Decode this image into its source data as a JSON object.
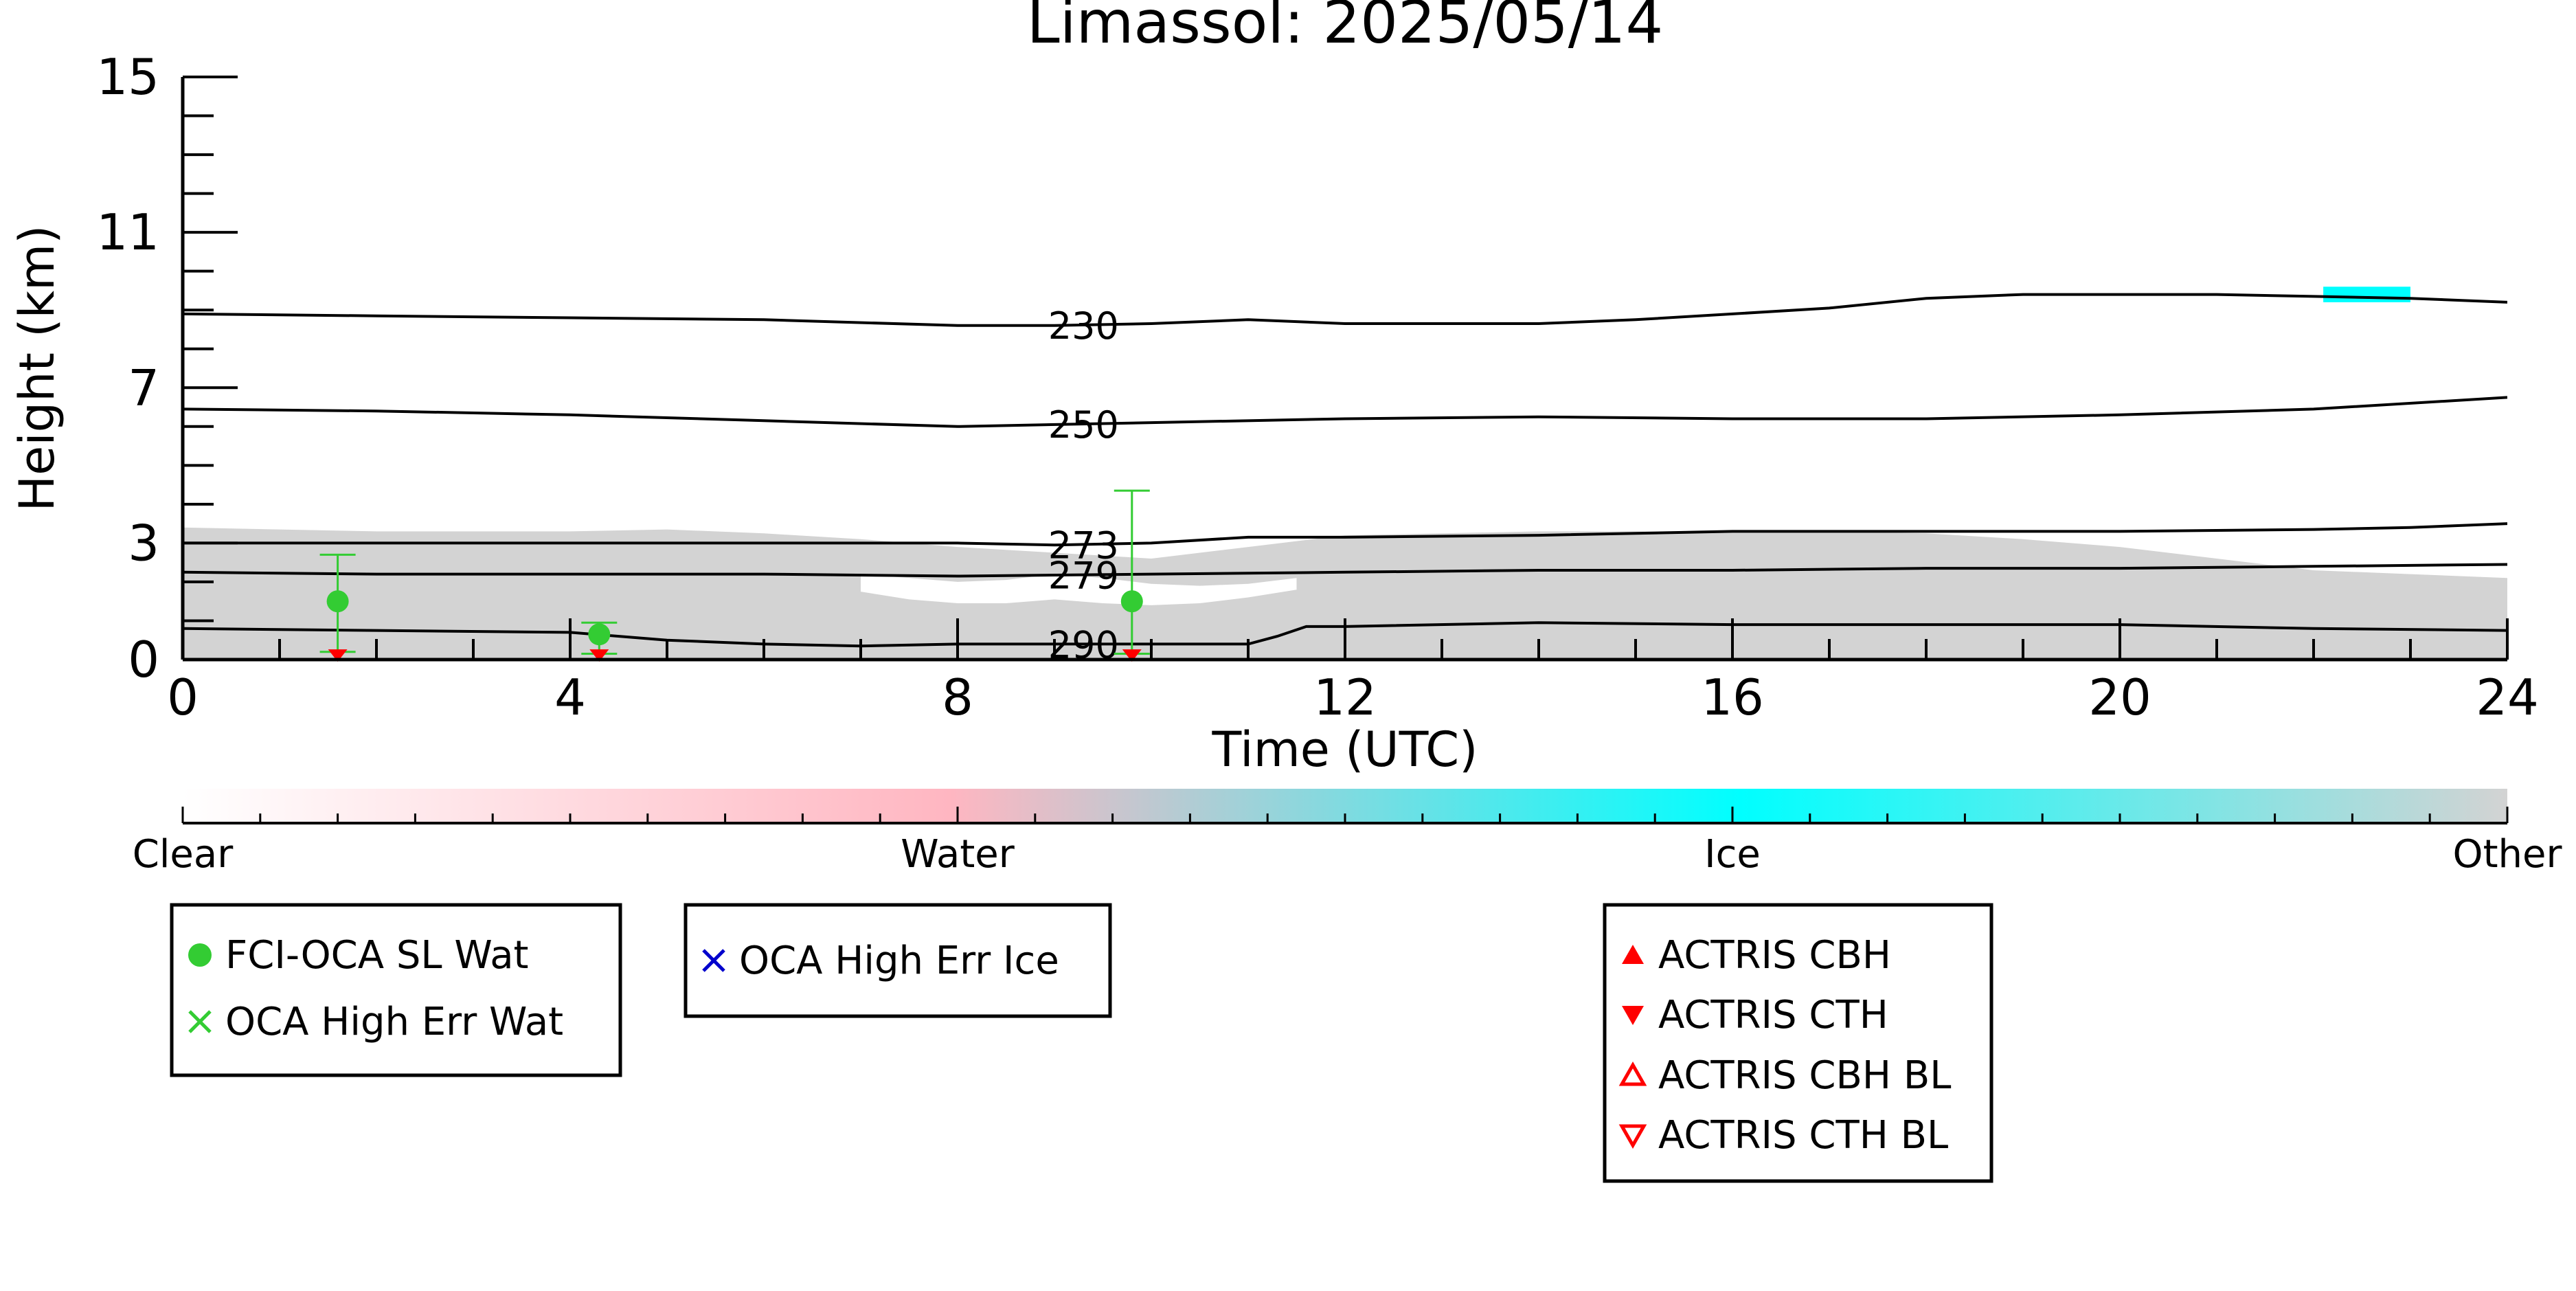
{
  "chart_data": {
    "type": "time-height cross-section with contours and markers",
    "title": "Limassol: 2025/05/14",
    "xlabel": "Time (UTC)",
    "ylabel": "Height (km)",
    "xlim": [
      0,
      24
    ],
    "ylim": [
      0,
      15
    ],
    "x_ticks": [
      0,
      4,
      8,
      12,
      16,
      20,
      24
    ],
    "y_ticks": [
      0,
      3,
      7,
      11,
      15
    ],
    "grid": false,
    "cloud_field": {
      "color": "#d3d3d3",
      "class": "Other",
      "boundary": {
        "x": [
          0,
          1,
          2,
          3,
          4,
          5,
          6,
          7,
          8,
          9,
          10,
          11,
          12,
          13,
          14,
          15,
          16,
          17,
          18,
          19,
          20,
          21,
          22,
          23,
          24
        ],
        "top_km": [
          3.4,
          3.35,
          3.3,
          3.3,
          3.3,
          3.35,
          3.25,
          3.1,
          2.9,
          2.75,
          2.6,
          2.9,
          3.2,
          3.25,
          3.3,
          3.3,
          3.3,
          3.3,
          3.25,
          3.1,
          2.9,
          2.6,
          2.3,
          2.2,
          2.1
        ]
      },
      "gap": {
        "x": [
          7.0,
          7.5,
          8.0,
          8.5,
          9.0,
          9.5,
          10.0,
          10.5,
          11.0,
          11.5
        ],
        "top_km": [
          2.2,
          2.1,
          2.0,
          2.05,
          2.2,
          2.1,
          1.95,
          1.9,
          1.95,
          2.1
        ],
        "bottom_km": [
          1.75,
          1.55,
          1.45,
          1.45,
          1.55,
          1.45,
          1.4,
          1.45,
          1.6,
          1.8
        ]
      }
    },
    "ice_patch": {
      "x_range": [
        22.1,
        23.0
      ],
      "height_km": [
        9.2,
        9.6
      ],
      "color": "#00ffff",
      "class": "Ice"
    },
    "temperature_contours": [
      {
        "label": "230",
        "label_x": 9.3,
        "x": [
          0,
          2,
          4,
          6,
          8,
          9,
          10,
          11,
          12,
          13,
          14,
          15,
          16,
          17,
          18,
          19,
          20,
          21,
          22,
          23,
          24
        ],
        "y": [
          8.9,
          8.85,
          8.8,
          8.75,
          8.6,
          8.6,
          8.65,
          8.75,
          8.65,
          8.65,
          8.65,
          8.75,
          8.9,
          9.05,
          9.3,
          9.4,
          9.4,
          9.4,
          9.35,
          9.3,
          9.2
        ]
      },
      {
        "label": "250",
        "label_x": 9.3,
        "x": [
          0,
          2,
          4,
          6,
          8,
          10,
          12,
          14,
          16,
          18,
          20,
          22,
          24
        ],
        "y": [
          6.45,
          6.4,
          6.3,
          6.15,
          6.0,
          6.1,
          6.2,
          6.25,
          6.2,
          6.2,
          6.3,
          6.45,
          6.75
        ]
      },
      {
        "label": "273",
        "label_x": 9.3,
        "x": [
          0,
          2,
          4,
          6,
          8,
          9,
          10,
          11,
          12,
          14,
          16,
          18,
          20,
          22,
          23,
          24
        ],
        "y": [
          3.0,
          3.0,
          3.0,
          3.0,
          3.0,
          2.95,
          3.0,
          3.15,
          3.15,
          3.2,
          3.3,
          3.3,
          3.3,
          3.35,
          3.4,
          3.5
        ]
      },
      {
        "label": "279",
        "label_x": 9.3,
        "x": [
          0,
          2,
          4,
          6,
          8,
          10,
          12,
          14,
          16,
          18,
          20,
          22,
          24
        ],
        "y": [
          2.25,
          2.2,
          2.2,
          2.2,
          2.15,
          2.2,
          2.25,
          2.3,
          2.3,
          2.35,
          2.35,
          2.4,
          2.45
        ]
      },
      {
        "label": "290",
        "label_x": 9.3,
        "x": [
          0,
          2,
          4,
          5,
          6,
          7,
          8,
          9,
          10,
          11,
          11.3,
          11.6,
          12,
          14,
          16,
          18,
          20,
          22,
          24
        ],
        "y": [
          0.8,
          0.75,
          0.7,
          0.5,
          0.4,
          0.35,
          0.4,
          0.4,
          0.4,
          0.4,
          0.6,
          0.85,
          0.85,
          0.95,
          0.9,
          0.9,
          0.9,
          0.8,
          0.75
        ]
      }
    ],
    "fci_oca_sl_wat": {
      "name": "FCI-OCA SL Wat",
      "color": "#33cc33",
      "points": [
        {
          "x": 1.6,
          "y": 1.5,
          "err_low": 0.2,
          "err_high": 2.7
        },
        {
          "x": 4.3,
          "y": 0.65,
          "err_low": 0.15,
          "err_high": 0.95
        },
        {
          "x": 9.8,
          "y": 1.5,
          "err_low": 0.15,
          "err_high": 4.35
        }
      ]
    },
    "actris_cth": {
      "name": "ACTRIS CTH",
      "color": "#ff0000",
      "points": [
        {
          "x": 1.6,
          "y": 0.05
        },
        {
          "x": 4.3,
          "y": 0.05
        },
        {
          "x": 9.8,
          "y": 0.05
        }
      ]
    },
    "colorbar": {
      "labels": [
        "Clear",
        "Water",
        "Ice",
        "Other"
      ],
      "stops": [
        {
          "pos": 0.0,
          "color": "#ffffff"
        },
        {
          "pos": 0.33,
          "color": "#ffb6c1"
        },
        {
          "pos": 0.67,
          "color": "#00ffff"
        },
        {
          "pos": 1.0,
          "color": "#d3d3d3"
        }
      ]
    },
    "legends": [
      {
        "entries": [
          {
            "label": "FCI-OCA SL Wat",
            "marker": "filled-circle",
            "color": "#33cc33"
          },
          {
            "label": "OCA High Err Wat",
            "marker": "x",
            "color": "#33cc33"
          }
        ]
      },
      {
        "entries": [
          {
            "label": "OCA High Err Ice",
            "marker": "x",
            "color": "#0000cc"
          }
        ]
      },
      {
        "entries": [
          {
            "label": "ACTRIS CBH",
            "marker": "filled-triangle-up",
            "color": "#ff0000"
          },
          {
            "label": "ACTRIS CTH",
            "marker": "filled-triangle-down",
            "color": "#ff0000"
          },
          {
            "label": "ACTRIS CBH BL",
            "marker": "open-triangle-up",
            "color": "#ff0000"
          },
          {
            "label": "ACTRIS CTH BL",
            "marker": "open-triangle-down",
            "color": "#ff0000"
          }
        ]
      }
    ]
  }
}
